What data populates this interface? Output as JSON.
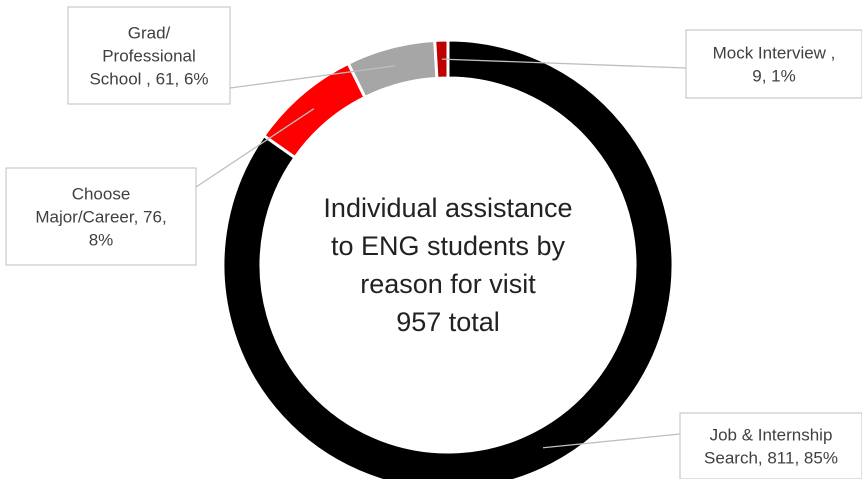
{
  "chart_data": {
    "type": "donut",
    "center_title": [
      "Individual assistance",
      "to ENG students by",
      "reason for visit",
      "957 total"
    ],
    "slices": [
      {
        "label": "Job & Internship Search",
        "value": 811,
        "percent": "85%",
        "color": "#000000",
        "label_lines": [
          "Job & Internship",
          "Search, 811, 85%"
        ]
      },
      {
        "label": "Choose Major/Career",
        "value": 76,
        "percent": "8%",
        "color": "#ff0000",
        "label_lines": [
          "Choose",
          "Major/Career, 76,",
          "8%"
        ]
      },
      {
        "label": "Grad/ Professional School",
        "value": 61,
        "percent": "6%",
        "color": "#a6a6a6",
        "label_lines": [
          "Grad/",
          "Professional",
          "School , 61, 6%"
        ]
      },
      {
        "label": "Mock Interview",
        "value": 9,
        "percent": "1%",
        "color": "#c00000",
        "label_lines": [
          "Mock Interview ,",
          "9, 1%"
        ]
      }
    ],
    "legend": "none"
  }
}
